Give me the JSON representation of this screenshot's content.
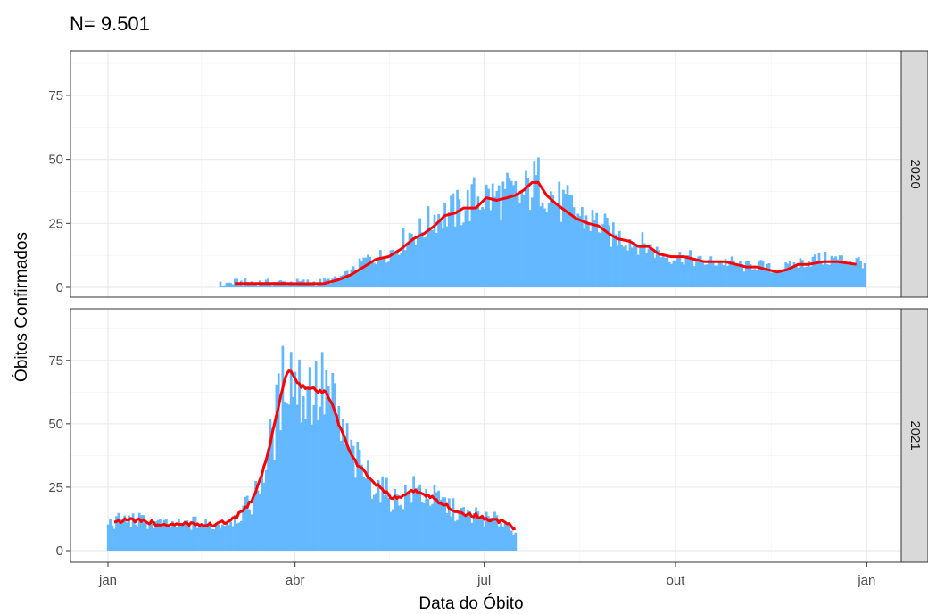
{
  "chart_data": {
    "type": "bar",
    "title": "N= 9.501",
    "xlabel": "Data do Óbito",
    "ylabel": "Óbitos Confirmados",
    "x_ticks": [
      "jan",
      "abr",
      "jul",
      "out",
      "jan"
    ],
    "y_ticks": [
      0,
      25,
      50,
      75
    ],
    "ylim": [
      0,
      92
    ],
    "x_domain_day_of_year": [
      1,
      365
    ],
    "grid": true,
    "bar_color": "#63b8ff",
    "line_color": "#ff0000",
    "overlay": "rolling average line",
    "panels": [
      {
        "strip_label": "2020",
        "daily_deaths_keypoints": [
          [
            55,
            1
          ],
          [
            62,
            2
          ],
          [
            70,
            2
          ],
          [
            85,
            2
          ],
          [
            95,
            2
          ],
          [
            102,
            2
          ],
          [
            110,
            3
          ],
          [
            118,
            6
          ],
          [
            125,
            11
          ],
          [
            132,
            12
          ],
          [
            139,
            15
          ],
          [
            146,
            21
          ],
          [
            152,
            22
          ],
          [
            158,
            28
          ],
          [
            165,
            29
          ],
          [
            172,
            31
          ],
          [
            179,
            36
          ],
          [
            186,
            35
          ],
          [
            193,
            36
          ],
          [
            200,
            35
          ],
          [
            205,
            40
          ],
          [
            210,
            42
          ],
          [
            216,
            34
          ],
          [
            223,
            31
          ],
          [
            230,
            27
          ],
          [
            237,
            25
          ],
          [
            244,
            20
          ],
          [
            251,
            19
          ],
          [
            258,
            17
          ],
          [
            265,
            14
          ],
          [
            272,
            12
          ],
          [
            279,
            12
          ],
          [
            286,
            10
          ],
          [
            293,
            10
          ],
          [
            300,
            10
          ],
          [
            307,
            8
          ],
          [
            314,
            9
          ],
          [
            321,
            7
          ],
          [
            328,
            8
          ],
          [
            335,
            10
          ],
          [
            342,
            11
          ],
          [
            352,
            11
          ],
          [
            365,
            10
          ]
        ],
        "rolling_mean_keypoints": [
          [
            62,
            1.5
          ],
          [
            75,
            1.5
          ],
          [
            85,
            1.5
          ],
          [
            95,
            1.4
          ],
          [
            105,
            1.5
          ],
          [
            112,
            3
          ],
          [
            118,
            5
          ],
          [
            124,
            8
          ],
          [
            130,
            11
          ],
          [
            136,
            12
          ],
          [
            142,
            15
          ],
          [
            148,
            19
          ],
          [
            153,
            21
          ],
          [
            158,
            24
          ],
          [
            163,
            28
          ],
          [
            168,
            29
          ],
          [
            172,
            31
          ],
          [
            178,
            31
          ],
          [
            183,
            35
          ],
          [
            188,
            34
          ],
          [
            193,
            35
          ],
          [
            197,
            36
          ],
          [
            201,
            38
          ],
          [
            205,
            41
          ],
          [
            208,
            41
          ],
          [
            212,
            36
          ],
          [
            216,
            33
          ],
          [
            221,
            30
          ],
          [
            226,
            27
          ],
          [
            232,
            25
          ],
          [
            237,
            24
          ],
          [
            242,
            21
          ],
          [
            246,
            19
          ],
          [
            252,
            18
          ],
          [
            256,
            16
          ],
          [
            261,
            16
          ],
          [
            266,
            13
          ],
          [
            272,
            12
          ],
          [
            278,
            12
          ],
          [
            283,
            11
          ],
          [
            288,
            10
          ],
          [
            293,
            10
          ],
          [
            298,
            10
          ],
          [
            303,
            9
          ],
          [
            308,
            8
          ],
          [
            313,
            8
          ],
          [
            318,
            7
          ],
          [
            323,
            6
          ],
          [
            328,
            7
          ],
          [
            333,
            9
          ],
          [
            338,
            9
          ],
          [
            345,
            10
          ],
          [
            352,
            10
          ],
          [
            361,
            9
          ]
        ]
      },
      {
        "strip_label": "2021",
        "daily_deaths_keypoints": [
          [
            1,
            11
          ],
          [
            8,
            12
          ],
          [
            15,
            12
          ],
          [
            22,
            11
          ],
          [
            29,
            10
          ],
          [
            36,
            10
          ],
          [
            43,
            11
          ],
          [
            50,
            10
          ],
          [
            57,
            11
          ],
          [
            64,
            14
          ],
          [
            71,
            20
          ],
          [
            76,
            32
          ],
          [
            80,
            45
          ],
          [
            84,
            60
          ],
          [
            87,
            75
          ],
          [
            90,
            70
          ],
          [
            94,
            63
          ],
          [
            98,
            65
          ],
          [
            102,
            62
          ],
          [
            106,
            64
          ],
          [
            110,
            55
          ],
          [
            114,
            45
          ],
          [
            119,
            36
          ],
          [
            124,
            31
          ],
          [
            129,
            27
          ],
          [
            134,
            23
          ],
          [
            139,
            20
          ],
          [
            144,
            22
          ],
          [
            149,
            24
          ],
          [
            154,
            22
          ],
          [
            159,
            20
          ],
          [
            164,
            18
          ],
          [
            169,
            15
          ],
          [
            174,
            14
          ],
          [
            179,
            14
          ],
          [
            184,
            12
          ],
          [
            189,
            12
          ],
          [
            193,
            11
          ],
          [
            197,
            8
          ]
        ]
      }
    ]
  }
}
